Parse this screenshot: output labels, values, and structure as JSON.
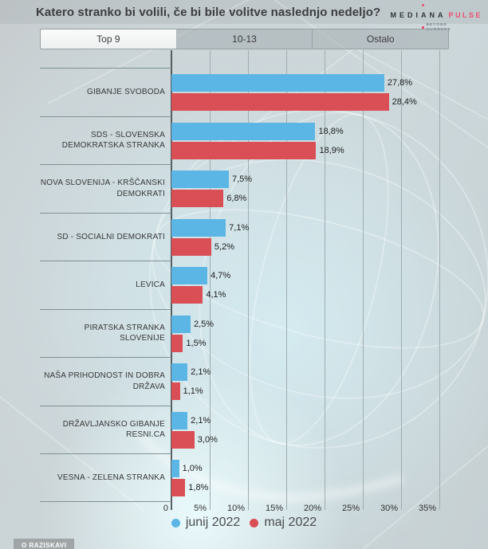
{
  "header": {
    "title": "Katero stranko bi volili, če bi bile volitve naslednjo nedeljo?",
    "logo": {
      "brand": "MEDIANA",
      "brand_suffix": "PULSE",
      "tagline_line1": "BEYOND",
      "tagline_line2": "NUMBERS"
    }
  },
  "tabs": [
    {
      "label": "Top 9",
      "active": true
    },
    {
      "label": "10-13",
      "active": false
    },
    {
      "label": "Ostalo",
      "active": false
    }
  ],
  "chart_data": {
    "type": "bar",
    "orientation": "horizontal",
    "title": "Katero stranko bi volili, če bi bile volitve naslednjo nedeljo?",
    "categories": [
      "GIBANJE SVOBODA",
      "SDS - SLOVENSKA DEMOKRATSKA STRANKA",
      "NOVA SLOVENIJA - KRŠČANSKI DEMOKRATI",
      "SD - SOCIALNI DEMOKRATI",
      "LEVICA",
      "PIRATSKA STRANKA SLOVENIJE",
      "NAŠA PRIHODNOST IN DOBRA DRŽAVA",
      "DRŽAVLJANSKO GIBANJE RESNI.CA",
      "VESNA - ZELENA STRANKA"
    ],
    "series": [
      {
        "name": "junij 2022",
        "color": "#5bb6e5",
        "values": [
          27.8,
          18.8,
          7.5,
          7.1,
          4.7,
          2.5,
          2.1,
          2.1,
          1.0
        ]
      },
      {
        "name": "maj 2022",
        "color": "#d94f55",
        "values": [
          28.4,
          18.9,
          6.8,
          5.2,
          4.1,
          1.5,
          1.1,
          3.0,
          1.8
        ]
      }
    ],
    "x_ticks": [
      "0",
      "5%",
      "10%",
      "15%",
      "20%",
      "25%",
      "30%",
      "35%"
    ],
    "x_tick_values": [
      0,
      5,
      10,
      15,
      20,
      25,
      30,
      35
    ],
    "xlim": [
      0,
      37
    ],
    "grid": "vertical",
    "value_label_format": "comma-decimal-percent",
    "legend_position": "bottom"
  },
  "footer": {
    "about_label": "O RAZISKAVI"
  }
}
